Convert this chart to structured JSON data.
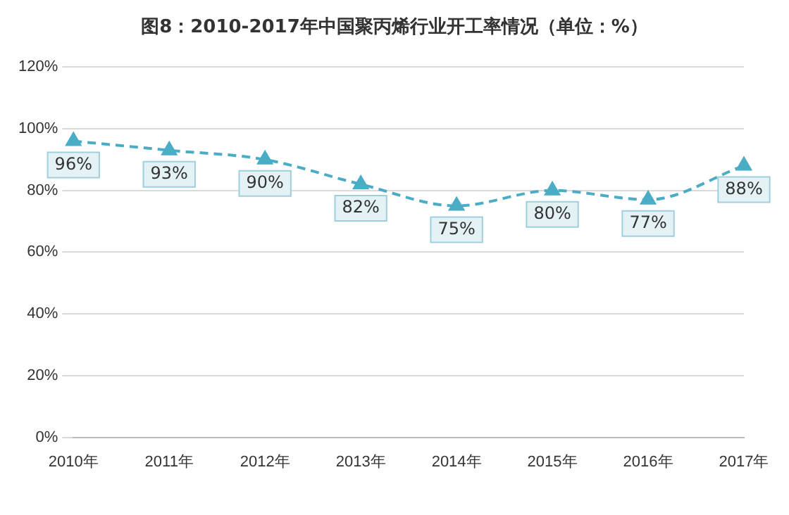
{
  "chart_data": {
    "type": "line",
    "title": "图8：2010-2017年中国聚丙烯行业开工率情况（单位：%）",
    "categories": [
      "2010年",
      "2011年",
      "2012年",
      "2013年",
      "2014年",
      "2015年",
      "2016年",
      "2017年"
    ],
    "series": [
      {
        "color": "#4bacc6",
        "values": [
          96,
          93,
          90,
          82,
          75,
          80,
          77,
          88
        ],
        "value_labels": [
          "96%",
          "93%",
          "90%",
          "82%",
          "75%",
          "80%",
          "77%",
          "88%"
        ]
      }
    ],
    "ylim": [
      0,
      120
    ],
    "yticks": [
      {
        "value": 0,
        "label": "0%"
      },
      {
        "value": 20,
        "label": "20%"
      },
      {
        "value": 40,
        "label": "40%"
      },
      {
        "value": 60,
        "label": "60%"
      },
      {
        "value": 80,
        "label": "80%"
      },
      {
        "value": 100,
        "label": "100%"
      },
      {
        "value": 120,
        "label": "120%"
      }
    ],
    "grid": "y",
    "legend": false,
    "marker": "triangle",
    "line_style": "dashed"
  }
}
